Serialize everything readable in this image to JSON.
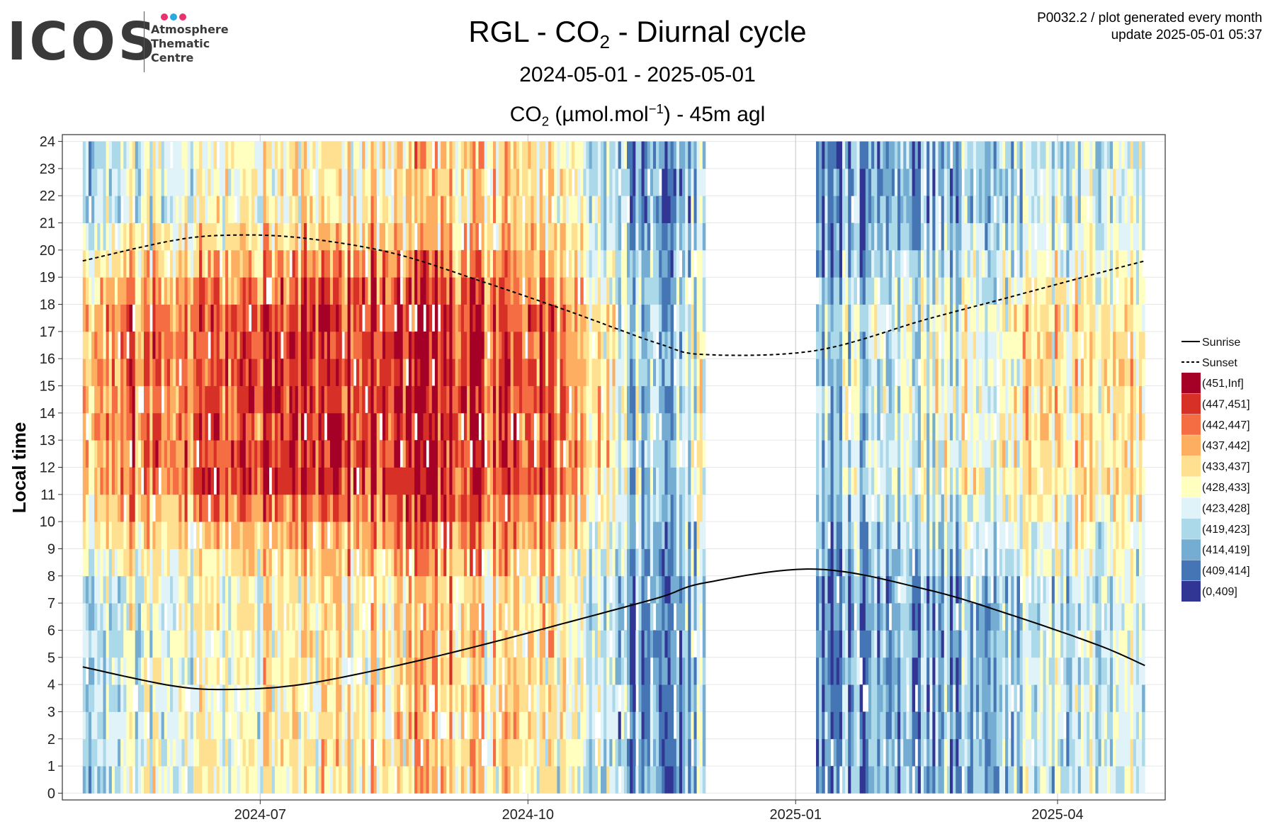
{
  "logo": {
    "word": "ICOS",
    "line1": "Atmosphere",
    "line2": "Thematic",
    "line3": "Centre",
    "dot_colors": [
      "#e8336e",
      "#2aa9e0",
      "#e8336e"
    ]
  },
  "header": {
    "title_pre": "RGL - CO",
    "title_sub": "2",
    "title_post": " - Diurnal cycle",
    "period": "2024-05-01 - 2025-05-01",
    "unit_pre": "CO",
    "unit_sub": "2",
    "unit_mid": " (µmol.mol",
    "unit_sup": "−1",
    "unit_post": ") - 45m agl"
  },
  "corner": {
    "line1": "P0032.2 / plot generated every month",
    "line2": "update  2025-05-01 05:37"
  },
  "chart_data": {
    "type": "heatmap",
    "xlim": [
      "2024-04-24",
      "2025-05-08"
    ],
    "ylim": [
      -0.25,
      24.25
    ],
    "ylabel": "Local time",
    "xlabel": "",
    "grid": true,
    "x_ticks": [
      {
        "date": "2024-07-01",
        "label": "2024-07"
      },
      {
        "date": "2024-10-01",
        "label": "2024-10"
      },
      {
        "date": "2025-01-01",
        "label": "2025-01"
      },
      {
        "date": "2025-04-01",
        "label": "2025-04"
      }
    ],
    "y_ticks": [
      "0",
      "1",
      "2",
      "3",
      "4",
      "5",
      "6",
      "7",
      "8",
      "9",
      "10",
      "11",
      "12",
      "13",
      "14",
      "15",
      "16",
      "17",
      "18",
      "19",
      "20",
      "21",
      "22",
      "23",
      "24"
    ],
    "data_range": [
      "2024-05-01",
      "2025-05-01"
    ],
    "gaps": [
      [
        "2024-12-01",
        "2025-01-08"
      ]
    ],
    "legend_placement": "right",
    "legend": {
      "lines": [
        {
          "label": "Sunrise",
          "style": "solid"
        },
        {
          "label": "Sunset",
          "style": "dashed"
        }
      ],
      "bins": [
        {
          "label": "(451,Inf]",
          "color": "#a50026"
        },
        {
          "label": "(447,451]",
          "color": "#d73027"
        },
        {
          "label": "(442,447]",
          "color": "#f46d43"
        },
        {
          "label": "(437,442]",
          "color": "#fdae61"
        },
        {
          "label": "(433,437]",
          "color": "#fee090"
        },
        {
          "label": "(428,433]",
          "color": "#ffffbf"
        },
        {
          "label": "(423,428]",
          "color": "#e0f3f8"
        },
        {
          "label": "(419,423]",
          "color": "#abd9e9"
        },
        {
          "label": "(414,419]",
          "color": "#74add1"
        },
        {
          "label": "(409,414]",
          "color": "#4575b4"
        },
        {
          "label": "(0,409]",
          "color": "#313695"
        }
      ]
    },
    "sunrise": {
      "dates": [
        "2024-05-01",
        "2024-06-01",
        "2024-06-21",
        "2024-07-15",
        "2024-08-15",
        "2024-09-15",
        "2024-10-15",
        "2024-11-15",
        "2024-12-01",
        "2025-01-08",
        "2025-02-15",
        "2025-03-15",
        "2025-04-15",
        "2025-05-01"
      ],
      "hours": [
        4.65,
        3.95,
        3.82,
        4.0,
        4.65,
        5.45,
        6.3,
        7.2,
        7.75,
        8.25,
        7.5,
        6.6,
        5.45,
        4.7
      ]
    },
    "sunset": {
      "dates": [
        "2024-05-01",
        "2024-06-01",
        "2024-06-21",
        "2024-07-15",
        "2024-08-15",
        "2024-09-15",
        "2024-10-15",
        "2024-11-15",
        "2024-12-01",
        "2025-01-08",
        "2025-02-15",
        "2025-03-15",
        "2025-04-15",
        "2025-05-01"
      ],
      "hours": [
        19.6,
        20.35,
        20.55,
        20.45,
        19.9,
        18.85,
        17.75,
        16.55,
        16.15,
        16.3,
        17.45,
        18.25,
        19.15,
        19.6
      ]
    },
    "bin_profile": {
      "dates": [
        "2024-05-01",
        "2024-06-01",
        "2024-07-01",
        "2024-08-01",
        "2024-09-01",
        "2024-10-01",
        "2024-10-20",
        "2024-11-10",
        "2024-12-01",
        "2025-01-08",
        "2025-02-01",
        "2025-03-01",
        "2025-04-01",
        "2025-05-01"
      ],
      "night_bin": [
        3.6,
        4.4,
        4.8,
        5.6,
        6.2,
        5.6,
        4.2,
        2.0,
        3.0,
        1.6,
        2.0,
        2.4,
        3.4,
        4.5
      ],
      "day_bin": [
        7.3,
        7.8,
        8.6,
        9.1,
        9.2,
        8.1,
        6.6,
        3.0,
        4.5,
        3.0,
        3.8,
        4.6,
        5.4,
        6.0
      ]
    }
  }
}
